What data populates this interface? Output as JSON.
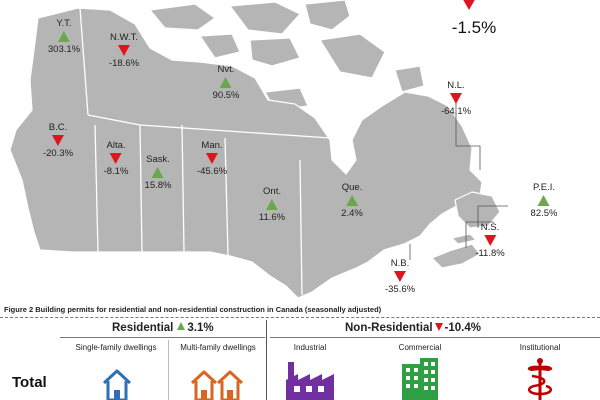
{
  "national": {
    "change": "-1.5%"
  },
  "provinces": [
    {
      "key": "yt",
      "name": "Y.T.",
      "change": "303.1%",
      "direction": "up"
    },
    {
      "key": "nwt",
      "name": "N.W.T.",
      "change": "-18.6%",
      "direction": "down"
    },
    {
      "key": "nvt",
      "name": "Nvt.",
      "change": "90.5%",
      "direction": "up"
    },
    {
      "key": "bc",
      "name": "B.C.",
      "change": "-20.3%",
      "direction": "down"
    },
    {
      "key": "alta",
      "name": "Alta.",
      "change": "-8.1%",
      "direction": "down"
    },
    {
      "key": "sask",
      "name": "Sask.",
      "change": "15.8%",
      "direction": "up"
    },
    {
      "key": "man",
      "name": "Man.",
      "change": "-45.6%",
      "direction": "down"
    },
    {
      "key": "ont",
      "name": "Ont.",
      "change": "11.6%",
      "direction": "up"
    },
    {
      "key": "que",
      "name": "Que.",
      "change": "2.4%",
      "direction": "up"
    },
    {
      "key": "nl",
      "name": "N.L.",
      "change": "-64.1%",
      "direction": "down"
    },
    {
      "key": "pei",
      "name": "P.E.I.",
      "change": "82.5%",
      "direction": "up"
    },
    {
      "key": "ns",
      "name": "N.S.",
      "change": "-11.8%",
      "direction": "down"
    },
    {
      "key": "nb",
      "name": "N.B.",
      "change": "-35.6%",
      "direction": "down"
    }
  ],
  "figure2": {
    "caption": "Figure 2  Building permits for residential and non-residential construction in Canada (seasonally adjusted)",
    "residential": {
      "label": "Residential",
      "change": "3.1%",
      "direction": "up"
    },
    "non_residential": {
      "label": "Non-Residential",
      "change": "-10.4%",
      "direction": "down"
    },
    "residential_types": [
      "Single-family dwellings",
      "Multi-family dwellings"
    ],
    "non_residential_types": [
      "Industrial",
      "Commercial",
      "Institutional"
    ],
    "row_label": "Total"
  },
  "colors": {
    "map_fill": "#b5b5b5",
    "map_border": "#ffffff",
    "decrease": "#e0141e",
    "increase": "#6aa84f",
    "house_single": "#2e6fb5",
    "house_multi": "#d9661f",
    "industrial": "#7030a0",
    "commercial": "#2ea043",
    "institutional": "#c00000"
  },
  "icons": [
    "house-icon",
    "houses-icon",
    "factory-icon",
    "office-building-icon",
    "caduceus-icon"
  ]
}
